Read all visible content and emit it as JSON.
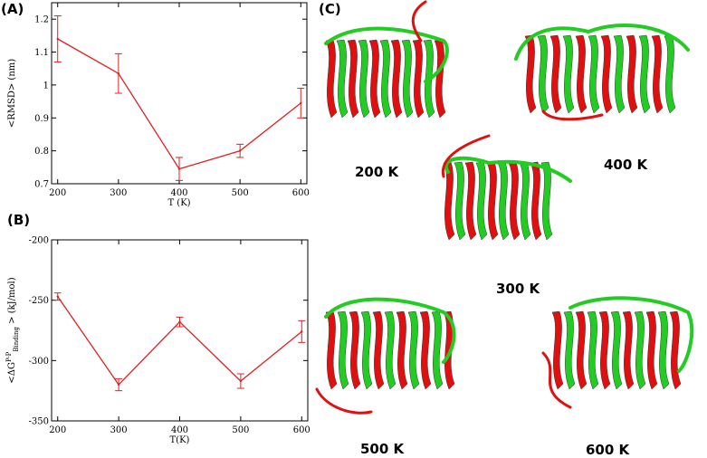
{
  "panels": {
    "a": "(A)",
    "b": "(B)",
    "c": "(C)"
  },
  "colors": {
    "line": "#e02020",
    "protein_green": "#22cc22",
    "protein_red": "#e01010"
  },
  "structures": [
    "200 K",
    "400 K",
    "300 K",
    "500 K",
    "600 K"
  ],
  "chart_data": [
    {
      "type": "line",
      "panel": "A",
      "title": "",
      "xlabel": "T (K)",
      "ylabel": "<RMSD> (nm)",
      "x": [
        200,
        300,
        400,
        500,
        600
      ],
      "xticks": [
        "200",
        "300",
        "400",
        "500",
        "600"
      ],
      "xlim": [
        190,
        610
      ],
      "ylim": [
        0.7,
        1.25
      ],
      "yticks": [
        "0.7",
        "0.8",
        "0.9",
        "1",
        "1.1",
        "1.2"
      ],
      "ytick_values": [
        0.7,
        0.8,
        0.9,
        1.0,
        1.1,
        1.2
      ],
      "grid": false,
      "series": [
        {
          "values": [
            1.14,
            1.035,
            0.745,
            0.8,
            0.945
          ],
          "errors": [
            0.07,
            0.06,
            0.035,
            0.02,
            0.045
          ]
        }
      ]
    },
    {
      "type": "line",
      "panel": "B",
      "title": "",
      "xlabel": "T(K)",
      "ylabel_main": "<ΔG",
      "ylabel_sup": "P-P",
      "ylabel_sub": "Binding",
      "ylabel_tail": "> (kJ/mol)",
      "x": [
        200,
        300,
        400,
        500,
        600
      ],
      "xticks": [
        "200",
        "300",
        "400",
        "500",
        "600"
      ],
      "xlim": [
        190,
        610
      ],
      "ylim": [
        -350,
        -200
      ],
      "yticks": [
        "-350",
        "-300",
        "-250",
        "-200"
      ],
      "ytick_values": [
        -350,
        -300,
        -250,
        -200
      ],
      "grid": false,
      "series": [
        {
          "values": [
            -247,
            -320,
            -268,
            -317,
            -276
          ],
          "errors": [
            3,
            5,
            4,
            6,
            9
          ]
        }
      ]
    }
  ]
}
